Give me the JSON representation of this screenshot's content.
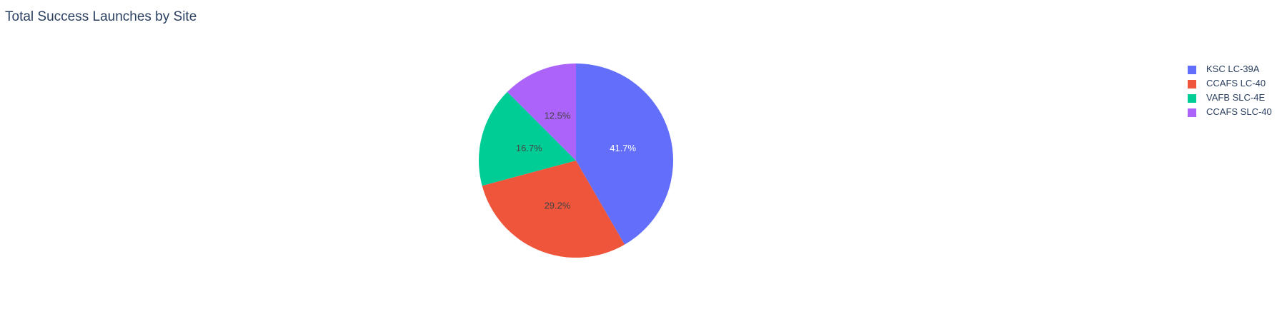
{
  "chart_data": {
    "type": "pie",
    "title": "Total Success Launches by Site",
    "categories": [
      "KSC LC-39A",
      "CCAFS LC-40",
      "VAFB SLC-4E",
      "CCAFS SLC-40"
    ],
    "values": [
      41.7,
      29.2,
      16.7,
      12.5
    ],
    "labels": [
      "41.7%",
      "29.2%",
      "16.7%",
      "12.5%"
    ],
    "colors": [
      "#636efa",
      "#ef553b",
      "#00cc96",
      "#ab63fa"
    ],
    "label_colors": [
      "#ffffff",
      "#444444",
      "#444444",
      "#444444"
    ],
    "legend": "right"
  }
}
